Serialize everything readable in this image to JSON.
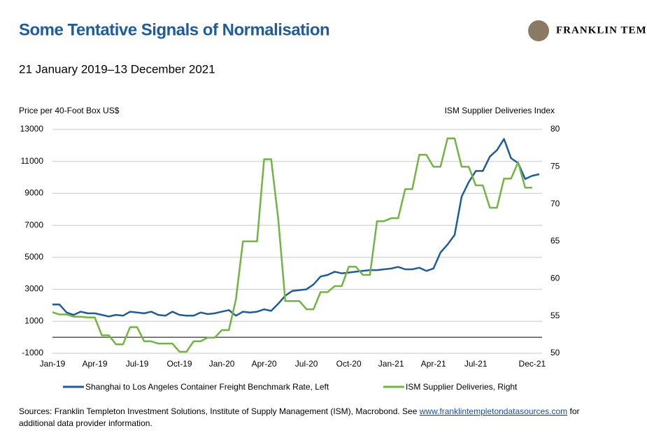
{
  "brand": "FRANKLIN TEMPLETON",
  "chart_data": {
    "type": "line",
    "title": "Some Tentative Signals of Normalisation",
    "subtitle": "21 January 2019–13 December 2021",
    "ylabel": "Price per 40-Foot Box US$",
    "y2label": "ISM Supplier Deliveries Index",
    "x": [
      0,
      0.5,
      1,
      1.5,
      2,
      2.5,
      3,
      3.5,
      4,
      4.5,
      5,
      5.5,
      6,
      6.5,
      7,
      7.5,
      8,
      8.5,
      9,
      9.5,
      10,
      10.5,
      11,
      11.5,
      12,
      12.5,
      13,
      13.5,
      14,
      14.5,
      15,
      15.5,
      16,
      16.5,
      17,
      17.5,
      18,
      18.5,
      19,
      19.5,
      20,
      20.5,
      21,
      21.5,
      22,
      22.5,
      23,
      23.5,
      24,
      24.5,
      25,
      25.5,
      26,
      26.5,
      27,
      27.5,
      28,
      28.5,
      29,
      29.5,
      30,
      30.5,
      31,
      31.5,
      32,
      32.5,
      33,
      33.5,
      34,
      34.5
    ],
    "xlim": [
      0,
      34.7
    ],
    "xticks": [
      {
        "value": 0,
        "label": "Jan-19"
      },
      {
        "value": 3,
        "label": "Apr-19"
      },
      {
        "value": 6,
        "label": "Jul-19"
      },
      {
        "value": 9,
        "label": "Oct-19"
      },
      {
        "value": 12,
        "label": "Jan-20"
      },
      {
        "value": 15,
        "label": "Apr-20"
      },
      {
        "value": 18,
        "label": "Jul-20"
      },
      {
        "value": 21,
        "label": "Oct-20"
      },
      {
        "value": 24,
        "label": "Jan-21"
      },
      {
        "value": 27,
        "label": "Apr-21"
      },
      {
        "value": 30,
        "label": "Jul-21"
      },
      {
        "value": 34,
        "label": "Dec-21"
      }
    ],
    "ylim": [
      -1000,
      13000
    ],
    "yticks": [
      -1000,
      1000,
      3000,
      5000,
      7000,
      9000,
      11000,
      13000
    ],
    "y2lim": [
      50,
      80
    ],
    "y2ticks": [
      50,
      55,
      60,
      65,
      70,
      75,
      80
    ],
    "zero_line": 0,
    "grid": true,
    "series": [
      {
        "name": "Shanghai to Los Angeles Container Freight Benchmark Rate, Left",
        "color": "#1f5c99",
        "values": [
          2050,
          2050,
          1550,
          1400,
          1600,
          1500,
          1500,
          1400,
          1300,
          1400,
          1350,
          1600,
          1550,
          1500,
          1600,
          1400,
          1350,
          1600,
          1400,
          1350,
          1350,
          1550,
          1450,
          1500,
          1600,
          1700,
          1350,
          1600,
          1550,
          1600,
          1750,
          1650,
          2100,
          2600,
          2900,
          2950,
          3000,
          3300,
          3800,
          3900,
          4100,
          4000,
          4050,
          4100,
          4150,
          4200,
          4200,
          4250,
          4300,
          4400,
          4250,
          4250,
          4350,
          4150,
          4300,
          5300,
          5800,
          6400,
          8800,
          9700,
          10400,
          10400,
          11300,
          11700,
          12400,
          11200,
          10900,
          9900,
          10100,
          10200
        ]
      },
      {
        "name": "ISM Supplier Deliveries, Right",
        "color": "#72b443",
        "axis": "y2",
        "values": [
          55.5,
          55.2,
          55.2,
          54.9,
          54.9,
          54.8,
          54.8,
          52.4,
          52.4,
          51.2,
          51.2,
          53.5,
          53.5,
          51.6,
          51.6,
          51.3,
          51.3,
          51.3,
          50.2,
          50.2,
          51.6,
          51.6,
          52.1,
          52.1,
          53.1,
          53.1,
          57.2,
          65,
          65,
          65,
          76,
          76,
          68,
          57,
          57,
          57,
          55.9,
          55.9,
          58.2,
          58.2,
          59,
          59,
          61.6,
          61.6,
          60.5,
          60.5,
          67.7,
          67.7,
          68.1,
          68.1,
          72,
          72,
          76.6,
          76.6,
          75,
          75,
          78.8,
          78.8,
          75,
          75,
          72.5,
          72.5,
          69.5,
          69.5,
          73.4,
          73.4,
          75.6,
          72.2,
          72.2,
          null
        ]
      }
    ]
  },
  "footer": {
    "text_before": "Sources: Franklin Templeton Investment Solutions, Institute of Supply Management (ISM), Macrobond. See ",
    "link": "www.franklintempletondatasources.com",
    "text_after": " for",
    "line2": "additional data provider information."
  }
}
